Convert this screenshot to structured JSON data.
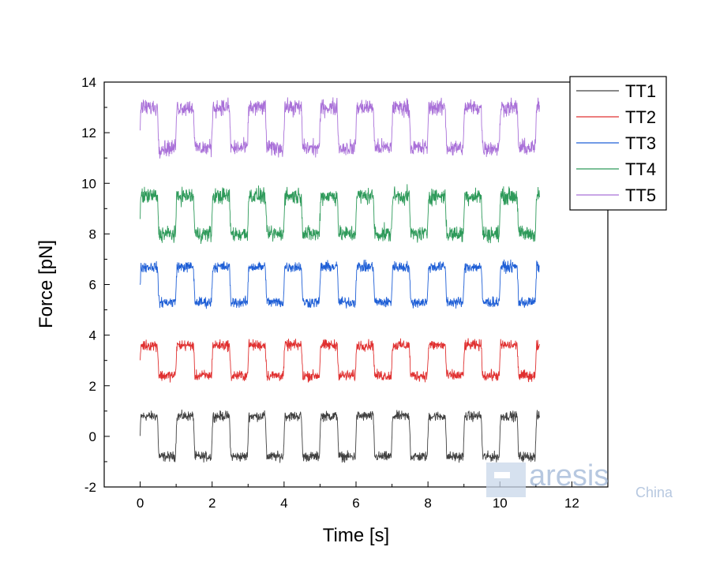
{
  "chart_data": {
    "type": "line",
    "title": "",
    "xlabel": "Time [s]",
    "ylabel": "Force [pN]",
    "xlim": [
      -1,
      13
    ],
    "ylim": [
      -2,
      14
    ],
    "xticks": [
      0,
      2,
      4,
      6,
      8,
      10,
      12
    ],
    "yticks": [
      -2,
      0,
      2,
      4,
      6,
      8,
      10,
      12,
      14
    ],
    "x_range": [
      0,
      11.1
    ],
    "period_s": 1.0,
    "grid": false,
    "legend_position": "top-right",
    "series": [
      {
        "name": "TT1",
        "color": "#404040",
        "high": 0.8,
        "low": -0.8,
        "noise": 0.18
      },
      {
        "name": "TT2",
        "color": "#e03030",
        "high": 3.6,
        "low": 2.4,
        "noise": 0.2
      },
      {
        "name": "TT3",
        "color": "#1f5fd6",
        "high": 6.7,
        "low": 5.3,
        "noise": 0.2
      },
      {
        "name": "TT4",
        "color": "#2e9a5a",
        "high": 9.5,
        "low": 8.0,
        "noise": 0.3
      },
      {
        "name": "TT5",
        "color": "#a970d8",
        "high": 13.0,
        "low": 11.4,
        "noise": 0.3
      }
    ]
  },
  "watermark": {
    "text": "aresis",
    "subtext": "China"
  }
}
